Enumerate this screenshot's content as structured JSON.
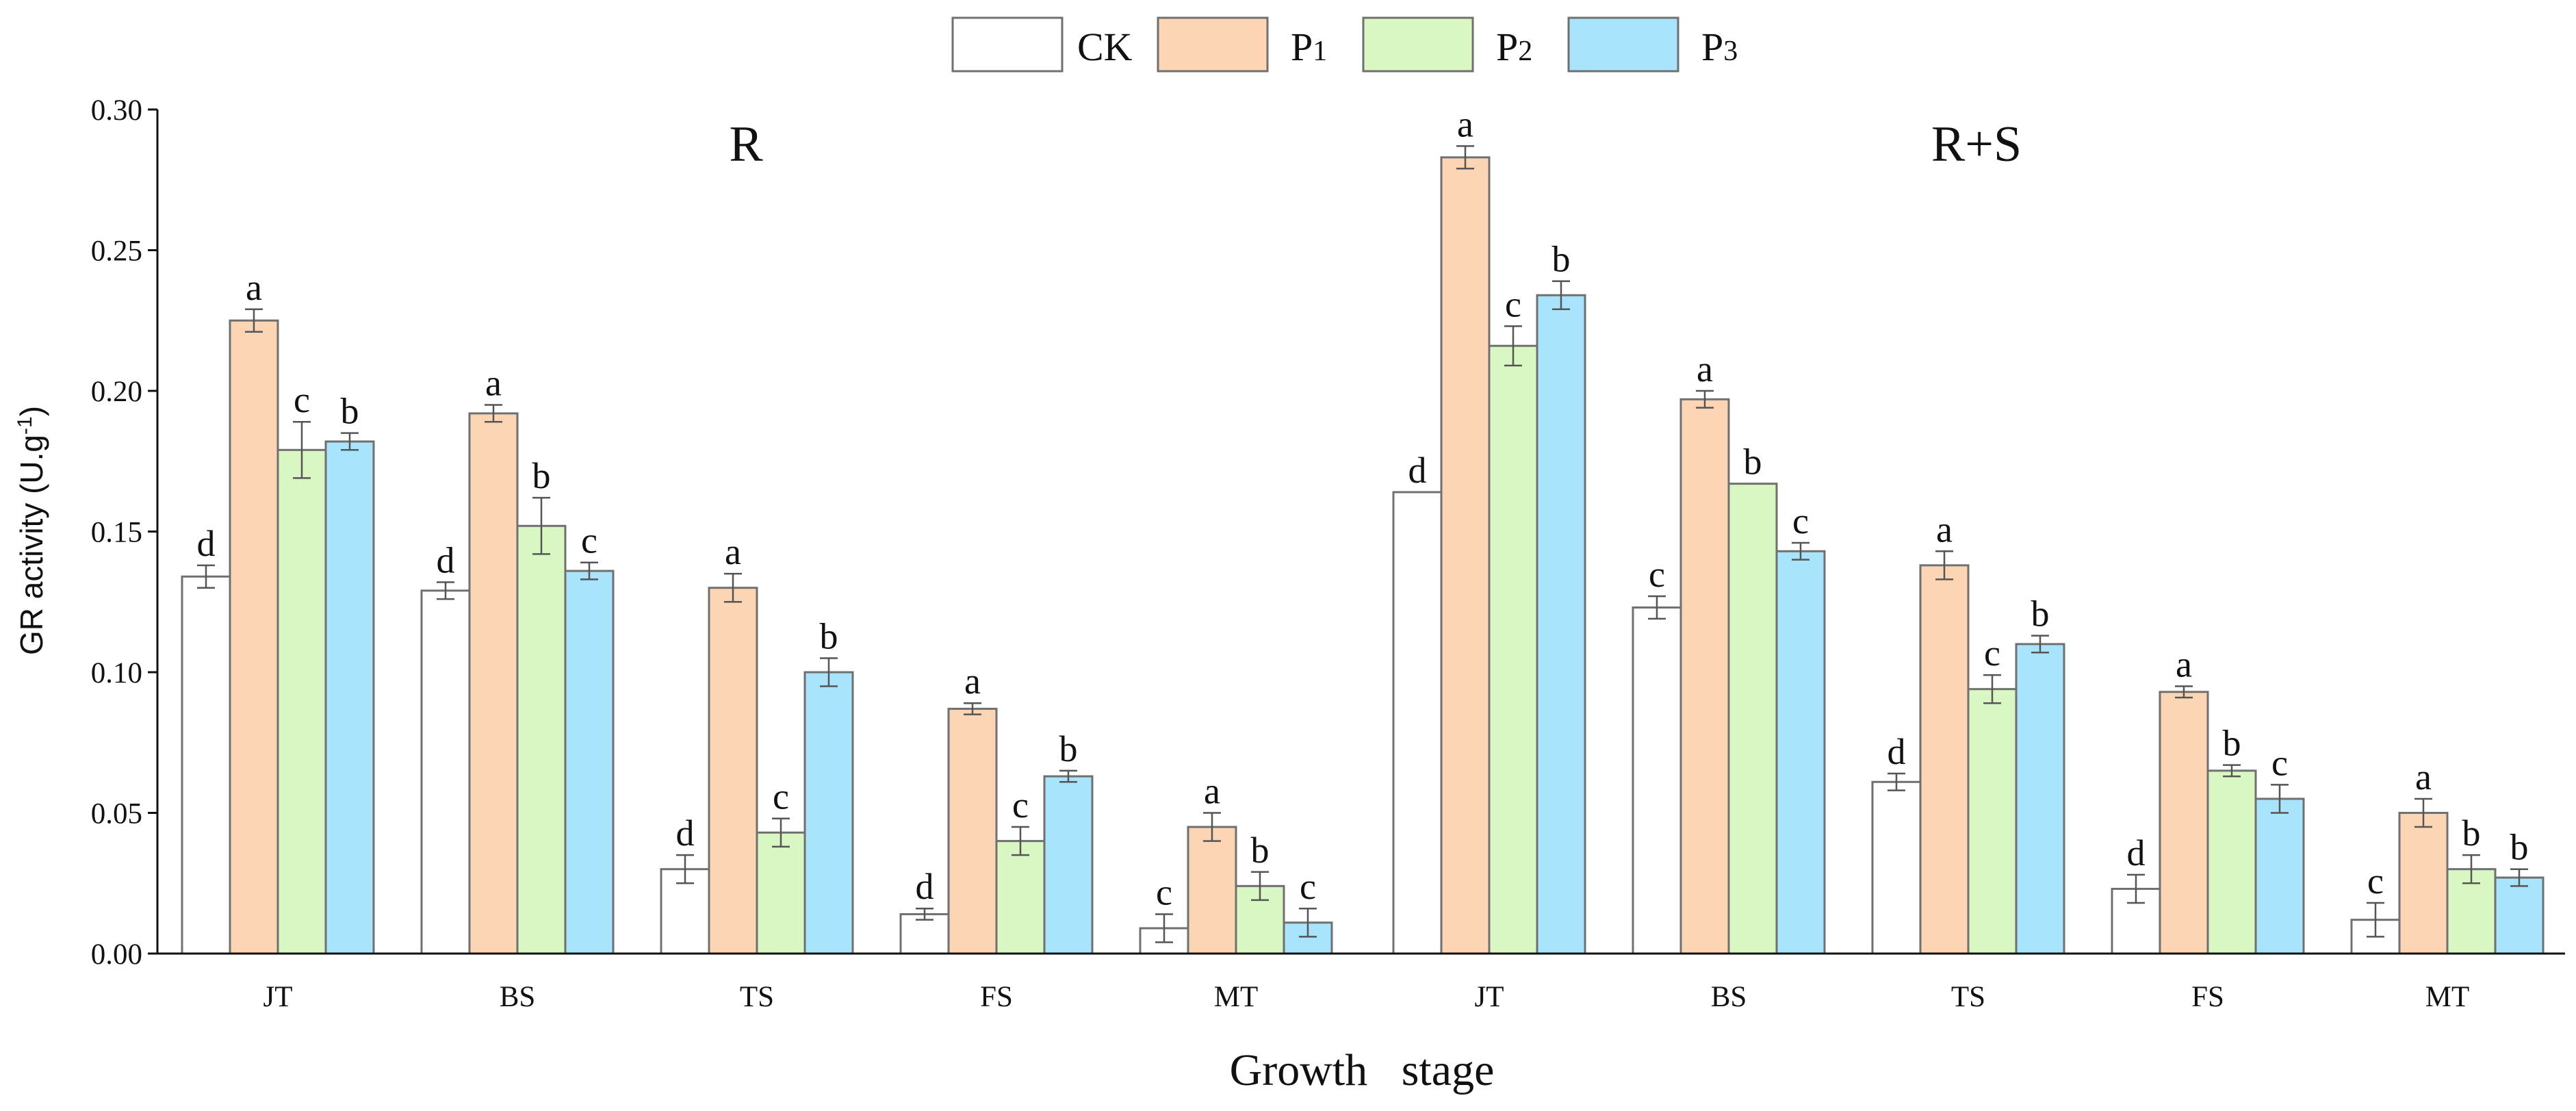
{
  "chart_data": {
    "type": "bar",
    "title": "",
    "xlabel": "Growth   stage",
    "ylabel": "GR activity (U.g",
    "ylabel_sup": "-1",
    "ylabel_close": ")",
    "ylim": [
      0,
      0.3
    ],
    "yticks": [
      "0.00",
      "0.05",
      "0.10",
      "0.15",
      "0.20",
      "0.25",
      "0.30"
    ],
    "yticks_values": [
      0,
      0.05,
      0.1,
      0.15,
      0.2,
      0.25,
      0.3
    ],
    "panels": [
      "R",
      "R+S"
    ],
    "categories": [
      "JT",
      "BS",
      "TS",
      "FS",
      "MT",
      "JT",
      "BS",
      "TS",
      "FS",
      "MT"
    ],
    "series": [
      {
        "name": "CK",
        "legend_base": "CK",
        "legend_sub": "",
        "color": "#ffffff",
        "values": [
          0.134,
          0.129,
          0.03,
          0.014,
          0.009,
          0.164,
          0.123,
          0.061,
          0.023,
          0.012
        ],
        "errors": [
          0.004,
          0.003,
          0.005,
          0.002,
          0.005,
          0.0,
          0.004,
          0.003,
          0.005,
          0.006
        ],
        "labels": [
          "d",
          "d",
          "d",
          "d",
          "c",
          "d",
          "c",
          "d",
          "d",
          "c"
        ]
      },
      {
        "name": "P1",
        "legend_base": "P",
        "legend_sub": "1",
        "color": "#fcd5b5",
        "values": [
          0.225,
          0.192,
          0.13,
          0.087,
          0.045,
          0.283,
          0.197,
          0.138,
          0.093,
          0.05
        ],
        "errors": [
          0.004,
          0.003,
          0.005,
          0.002,
          0.005,
          0.004,
          0.003,
          0.005,
          0.002,
          0.005
        ],
        "labels": [
          "a",
          "a",
          "a",
          "a",
          "a",
          "a",
          "a",
          "a",
          "a",
          "a"
        ]
      },
      {
        "name": "P2",
        "legend_base": "P",
        "legend_sub": "2",
        "color": "#d9f7c2",
        "values": [
          0.179,
          0.152,
          0.043,
          0.04,
          0.024,
          0.216,
          0.167,
          0.094,
          0.065,
          0.03
        ],
        "errors": [
          0.01,
          0.01,
          0.005,
          0.005,
          0.005,
          0.007,
          0.0,
          0.005,
          0.002,
          0.005
        ],
        "labels": [
          "c",
          "b",
          "c",
          "c",
          "b",
          "c",
          "b",
          "c",
          "b",
          "b"
        ]
      },
      {
        "name": "P3",
        "legend_base": "P",
        "legend_sub": "3",
        "color": "#a8e4fb",
        "values": [
          0.182,
          0.136,
          0.1,
          0.063,
          0.011,
          0.234,
          0.143,
          0.11,
          0.055,
          0.027
        ],
        "errors": [
          0.003,
          0.003,
          0.005,
          0.002,
          0.005,
          0.005,
          0.003,
          0.003,
          0.005,
          0.003
        ],
        "labels": [
          "b",
          "c",
          "b",
          "b",
          "c",
          "b",
          "c",
          "b",
          "c",
          "b"
        ]
      }
    ]
  }
}
